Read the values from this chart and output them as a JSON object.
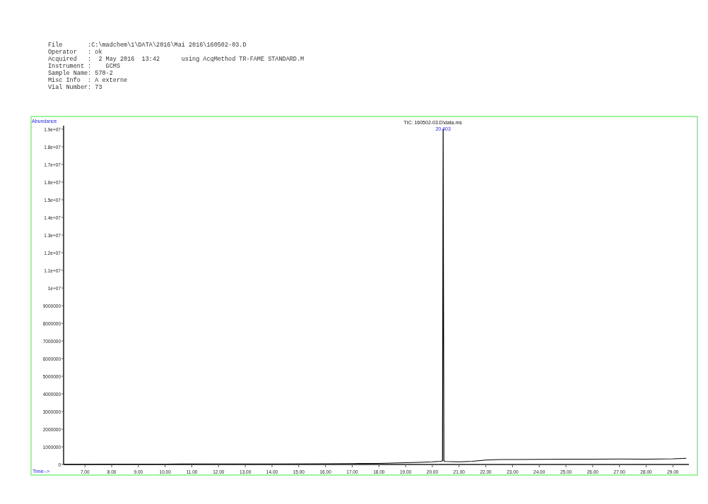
{
  "chart_data": {
    "type": "line",
    "title": "TIC: 160502-03.D\\data.ms",
    "xlabel": "Time-->",
    "ylabel": "Abundance",
    "annotations": [
      "File       :C:\\madchem\\1\\DATA\\2016\\Mai 2016\\160502-03.D",
      "Operator   : ok",
      "Acquired   :  2 May 2016  13:42      using AcqMethod TR-FAME STANDARD.M",
      "Instrument :    GCMS",
      "Sample Name: 570-2",
      "Misc Info  : A externe",
      "Vial Number: 73",
      {
        "text": "20.403",
        "x": 20.403,
        "y": 19000000
      }
    ],
    "xlim": [
      6.2,
      29.6
    ],
    "ylim": [
      0,
      19200000
    ],
    "xticks": [
      {
        "value": 7,
        "label": "7.00"
      },
      {
        "value": 8,
        "label": "8.00"
      },
      {
        "value": 9,
        "label": "9.00"
      },
      {
        "value": 10,
        "label": "10.00"
      },
      {
        "value": 11,
        "label": "11.00"
      },
      {
        "value": 12,
        "label": "12.00"
      },
      {
        "value": 13,
        "label": "13.00"
      },
      {
        "value": 14,
        "label": "14.00"
      },
      {
        "value": 15,
        "label": "15.00"
      },
      {
        "value": 16,
        "label": "16.00"
      },
      {
        "value": 17,
        "label": "17.00"
      },
      {
        "value": 18,
        "label": "18.00"
      },
      {
        "value": 19,
        "label": "19.00"
      },
      {
        "value": 20,
        "label": "20.00"
      },
      {
        "value": 21,
        "label": "21.00"
      },
      {
        "value": 22,
        "label": "22.00"
      },
      {
        "value": 23,
        "label": "23.00"
      },
      {
        "value": 24,
        "label": "24.00"
      },
      {
        "value": 25,
        "label": "25.00"
      },
      {
        "value": 26,
        "label": "26.00"
      },
      {
        "value": 27,
        "label": "27.00"
      },
      {
        "value": 28,
        "label": "28.00"
      },
      {
        "value": 29,
        "label": "29.00"
      }
    ],
    "yticks": [
      0,
      1000000,
      2000000,
      3000000,
      4000000,
      5000000,
      6000000,
      7000000,
      8000000,
      9000000,
      {
        "value": 10000000,
        "label": "1e+07"
      },
      {
        "value": 11000000,
        "label": "1.1e+07"
      },
      {
        "value": 12000000,
        "label": "1.2e+07"
      },
      {
        "value": 13000000,
        "label": "1.3e+07"
      },
      {
        "value": 14000000,
        "label": "1.4e+07"
      },
      {
        "value": 15000000,
        "label": "1.5e+07"
      },
      {
        "value": 16000000,
        "label": "1.6e+07"
      },
      {
        "value": 17000000,
        "label": "1.7e+07"
      },
      {
        "value": 18000000,
        "label": "1.8e+07"
      },
      {
        "value": 19000000,
        "label": "1.9e+07"
      }
    ],
    "x": [
      6.2,
      8,
      10,
      12,
      14,
      16,
      17,
      18,
      18.5,
      19,
      19.5,
      20,
      20.3,
      20.38,
      20.403,
      20.43,
      20.5,
      21,
      21.5,
      22,
      22.5,
      23,
      24,
      25,
      26,
      27,
      28,
      29,
      29.5
    ],
    "values": [
      0,
      20000,
      20000,
      30000,
      30000,
      40000,
      50000,
      60000,
      80000,
      100000,
      120000,
      150000,
      180000,
      200000,
      19000000,
      200000,
      170000,
      150000,
      180000,
      250000,
      280000,
      280000,
      290000,
      300000,
      300000,
      310000,
      300000,
      320000,
      350000
    ],
    "color": "#000000"
  }
}
